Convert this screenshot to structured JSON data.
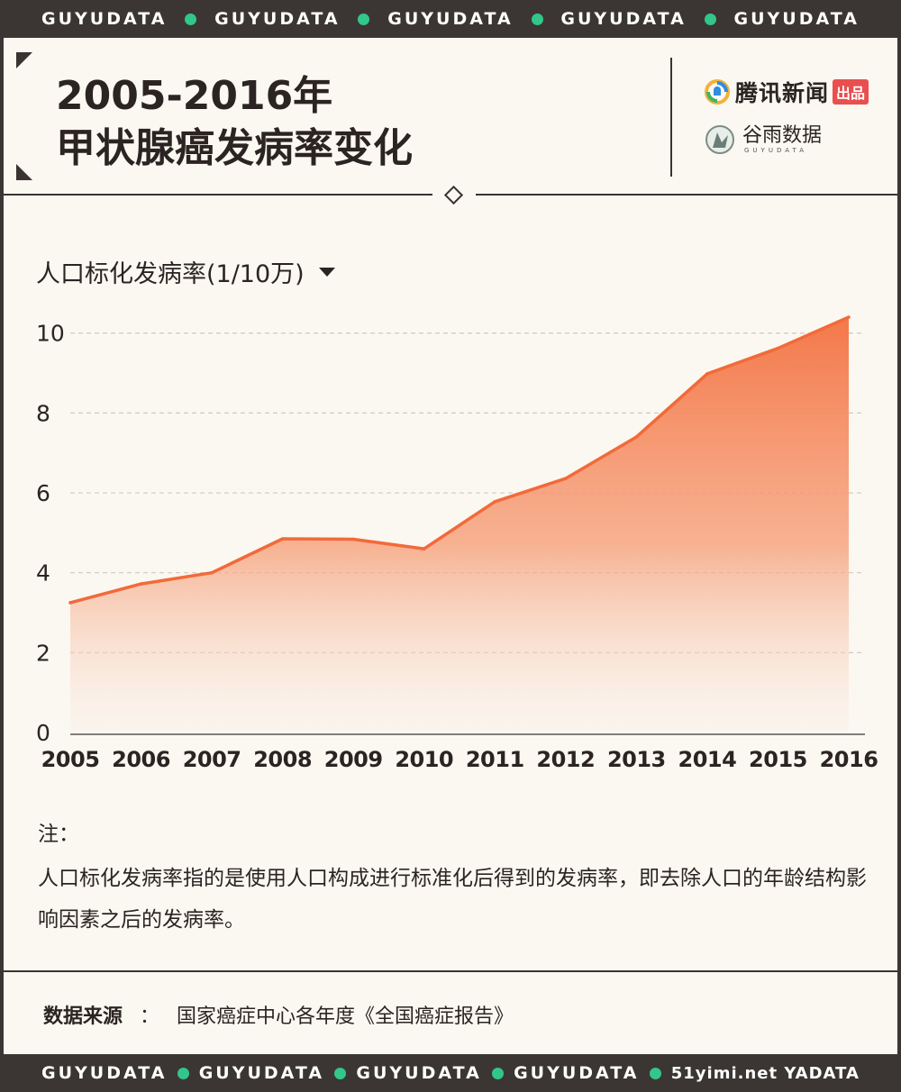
{
  "banner": {
    "text": "GUYUDATA",
    "watermark": "51yimi.net YADATA",
    "dot_color": "#32c68a"
  },
  "header": {
    "title_line1": "2005-2016年",
    "title_line2": "甲状腺癌发病率变化",
    "logo_tencent": "腾讯新闻",
    "logo_tencent_tag": "出品",
    "logo_guyu": "谷雨数据",
    "logo_guyu_en": "GUYUDATA"
  },
  "chart_data": {
    "type": "area",
    "title": "",
    "ylabel": "人口标化发病率(1/10万)",
    "xlabel": "",
    "x": [
      "2005",
      "2006",
      "2007",
      "2008",
      "2009",
      "2010",
      "2011",
      "2012",
      "2013",
      "2014",
      "2015",
      "2016"
    ],
    "values": [
      3.25,
      3.72,
      4.0,
      4.85,
      4.84,
      4.6,
      5.78,
      6.36,
      7.4,
      8.98,
      9.62,
      10.4
    ],
    "ylim": [
      0,
      10.4
    ],
    "yticks": [
      0,
      2,
      4,
      6,
      8,
      10
    ],
    "grid": true,
    "color": "#f26a3a"
  },
  "notes": {
    "heading": "注：",
    "body": "人口标化发病率指的是使用人口构成进行标准化后得到的发病率，即去除人口的年龄结构影响因素之后的发病率。"
  },
  "source": {
    "label": "数据来源",
    "colon": "：",
    "text": "国家癌症中心各年度《全国癌症报告》"
  }
}
